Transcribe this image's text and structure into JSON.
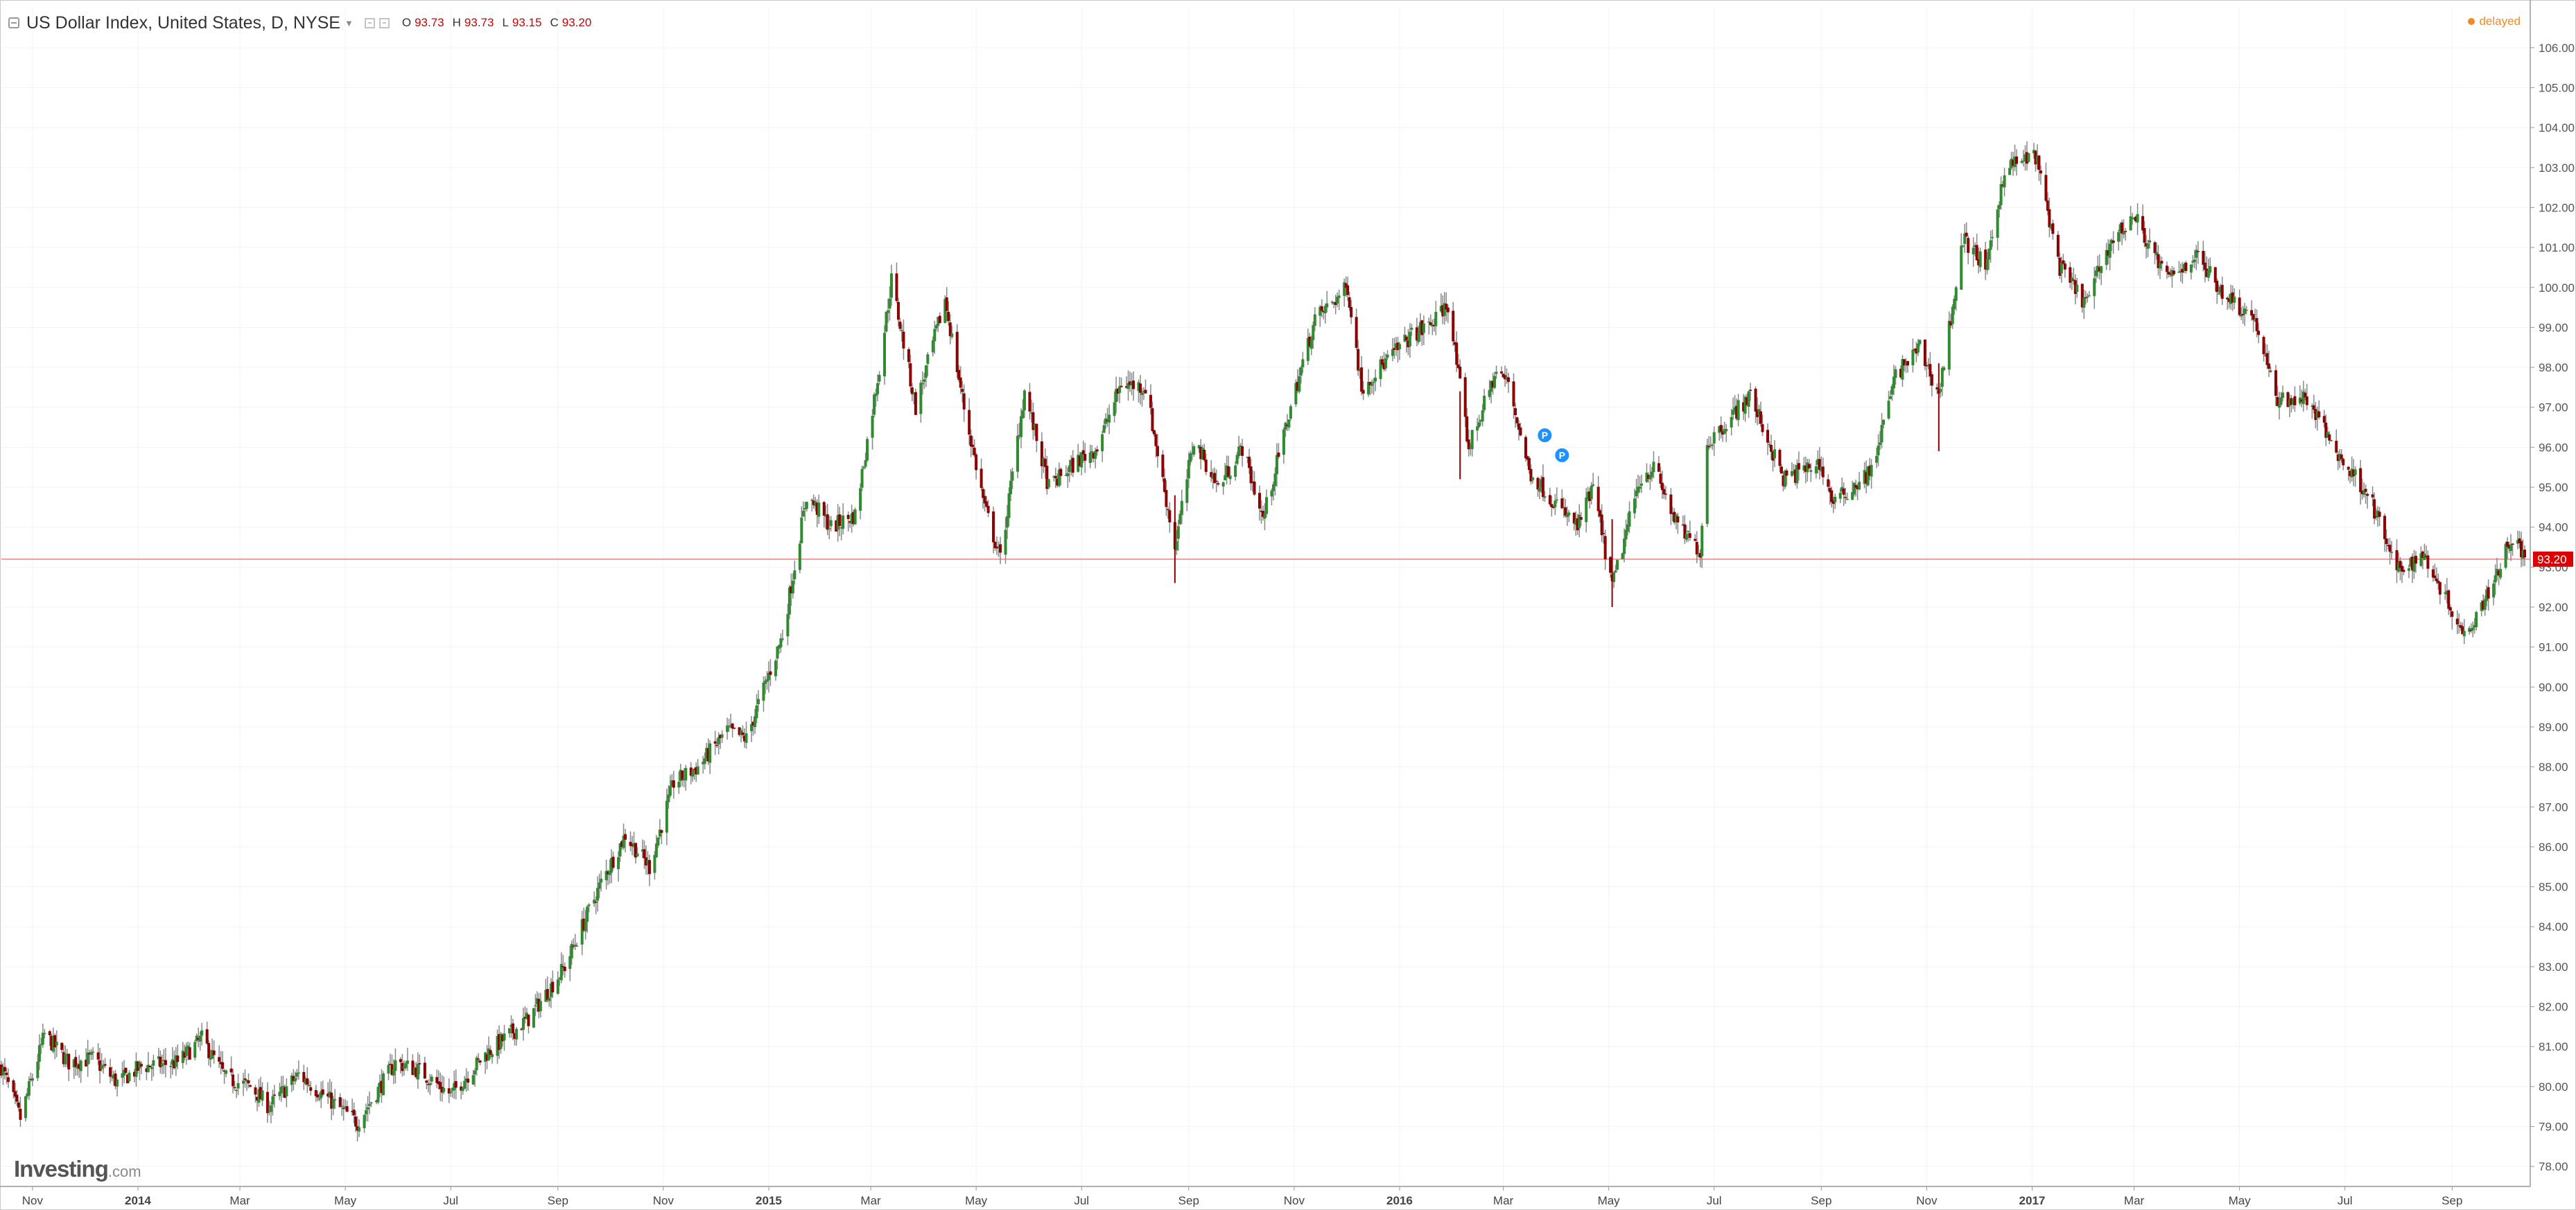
{
  "header": {
    "title": "US Dollar Index, United States, D, NYSE",
    "ohlc": [
      {
        "key": "O",
        "value": "93.73"
      },
      {
        "key": "H",
        "value": "93.73"
      },
      {
        "key": "L",
        "value": "93.15"
      },
      {
        "key": "C",
        "value": "93.20"
      }
    ],
    "status": "delayed"
  },
  "logo": {
    "brand": "Investing",
    "domain": ".com"
  },
  "colors": {
    "up": "#2e8b2e",
    "down": "#8b0000",
    "wick": "#888888",
    "price_line": "#f08080",
    "price_badge": "#dd0000",
    "grid": "#f3f3f3",
    "delayed": "#f08a24"
  },
  "chart_data": {
    "type": "candlestick",
    "title": "US Dollar Index, United States, D, NYSE",
    "last_price": "93.20",
    "y_axis": {
      "position": "right",
      "range": [
        77.5,
        106.5
      ],
      "ticks": [
        "78.00",
        "79.00",
        "80.00",
        "81.00",
        "82.00",
        "83.00",
        "84.00",
        "85.00",
        "86.00",
        "87.00",
        "88.00",
        "89.00",
        "90.00",
        "91.00",
        "92.00",
        "93.00",
        "94.00",
        "95.00",
        "96.00",
        "97.00",
        "98.00",
        "99.00",
        "100.00",
        "101.00",
        "102.00",
        "103.00",
        "104.00",
        "105.00",
        "106.00"
      ]
    },
    "x_axis": {
      "range": [
        "2013-10-14",
        "2017-10-13"
      ],
      "ticks": [
        {
          "label": "Nov",
          "date": "2013-11-01",
          "bold": false
        },
        {
          "label": "2014",
          "date": "2014-01-01",
          "bold": true
        },
        {
          "label": "Mar",
          "date": "2014-03-01",
          "bold": false
        },
        {
          "label": "May",
          "date": "2014-05-01",
          "bold": false
        },
        {
          "label": "Jul",
          "date": "2014-07-01",
          "bold": false
        },
        {
          "label": "Sep",
          "date": "2014-09-01",
          "bold": false
        },
        {
          "label": "Nov",
          "date": "2014-11-01",
          "bold": false
        },
        {
          "label": "2015",
          "date": "2015-01-01",
          "bold": true
        },
        {
          "label": "Mar",
          "date": "2015-03-01",
          "bold": false
        },
        {
          "label": "May",
          "date": "2015-05-01",
          "bold": false
        },
        {
          "label": "Jul",
          "date": "2015-07-01",
          "bold": false
        },
        {
          "label": "Sep",
          "date": "2015-09-01",
          "bold": false
        },
        {
          "label": "Nov",
          "date": "2015-11-01",
          "bold": false
        },
        {
          "label": "2016",
          "date": "2016-01-01",
          "bold": true
        },
        {
          "label": "Mar",
          "date": "2016-03-01",
          "bold": false
        },
        {
          "label": "May",
          "date": "2016-05-01",
          "bold": false
        },
        {
          "label": "Jul",
          "date": "2016-07-01",
          "bold": false
        },
        {
          "label": "Sep",
          "date": "2016-09-01",
          "bold": false
        },
        {
          "label": "Nov",
          "date": "2016-11-01",
          "bold": false
        },
        {
          "label": "2017",
          "date": "2017-01-01",
          "bold": true
        },
        {
          "label": "Mar",
          "date": "2017-03-01",
          "bold": false
        },
        {
          "label": "May",
          "date": "2017-05-01",
          "bold": false
        },
        {
          "label": "Jul",
          "date": "2017-07-01",
          "bold": false
        },
        {
          "label": "Sep",
          "date": "2017-09-01",
          "bold": false
        }
      ]
    },
    "grid": true,
    "close_path": [
      [
        "2013-10-14",
        80.5
      ],
      [
        "2013-10-25",
        79.2
      ],
      [
        "2013-11-08",
        81.3
      ],
      [
        "2013-11-22",
        80.6
      ],
      [
        "2013-12-06",
        80.7
      ],
      [
        "2013-12-20",
        80.1
      ],
      [
        "2014-01-03",
        80.5
      ],
      [
        "2014-01-24",
        80.6
      ],
      [
        "2014-02-07",
        81.2
      ],
      [
        "2014-02-21",
        80.2
      ],
      [
        "2014-03-07",
        80.0
      ],
      [
        "2014-03-18",
        79.5
      ],
      [
        "2014-04-04",
        80.3
      ],
      [
        "2014-04-18",
        79.8
      ],
      [
        "2014-05-08",
        79.1
      ],
      [
        "2014-05-30",
        80.6
      ],
      [
        "2014-06-13",
        80.4
      ],
      [
        "2014-07-01",
        79.8
      ],
      [
        "2014-07-21",
        80.8
      ],
      [
        "2014-08-15",
        81.7
      ],
      [
        "2014-09-05",
        83.0
      ],
      [
        "2014-09-26",
        85.1
      ],
      [
        "2014-10-10",
        86.3
      ],
      [
        "2014-10-24",
        85.5
      ],
      [
        "2014-11-07",
        87.6
      ],
      [
        "2014-11-21",
        88.0
      ],
      [
        "2014-12-08",
        88.9
      ],
      [
        "2014-12-19",
        88.7
      ],
      [
        "2015-01-09",
        91.3
      ],
      [
        "2015-01-23",
        94.8
      ],
      [
        "2015-02-06",
        94.0
      ],
      [
        "2015-02-20",
        94.3
      ],
      [
        "2015-03-06",
        98.0
      ],
      [
        "2015-03-13",
        100.2
      ],
      [
        "2015-03-27",
        97.0
      ],
      [
        "2015-04-13",
        99.7
      ],
      [
        "2015-04-24",
        97.0
      ],
      [
        "2015-05-06",
        94.5
      ],
      [
        "2015-05-15",
        93.2
      ],
      [
        "2015-05-29",
        97.4
      ],
      [
        "2015-06-12",
        95.0
      ],
      [
        "2015-06-30",
        95.7
      ],
      [
        "2015-07-10",
        96.0
      ],
      [
        "2015-07-24",
        97.6
      ],
      [
        "2015-08-07",
        97.5
      ],
      [
        "2015-08-24",
        93.5
      ],
      [
        "2015-09-04",
        96.2
      ],
      [
        "2015-09-18",
        95.0
      ],
      [
        "2015-10-02",
        96.0
      ],
      [
        "2015-10-14",
        94.2
      ],
      [
        "2015-10-30",
        97.0
      ],
      [
        "2015-11-13",
        99.2
      ],
      [
        "2015-12-02",
        100.0
      ],
      [
        "2015-12-10",
        97.5
      ],
      [
        "2015-12-23",
        98.1
      ],
      [
        "2016-01-08",
        98.8
      ],
      [
        "2016-01-20",
        99.1
      ],
      [
        "2016-01-29",
        99.6
      ],
      [
        "2016-02-10",
        96.0
      ],
      [
        "2016-02-26",
        97.9
      ],
      [
        "2016-03-04",
        97.6
      ],
      [
        "2016-03-16",
        95.4
      ],
      [
        "2016-03-31",
        94.6
      ],
      [
        "2016-04-13",
        94.0
      ],
      [
        "2016-04-22",
        95.0
      ],
      [
        "2016-05-03",
        92.5
      ],
      [
        "2016-05-19",
        95.2
      ],
      [
        "2016-05-27",
        95.5
      ],
      [
        "2016-06-10",
        94.0
      ],
      [
        "2016-06-23",
        93.4
      ],
      [
        "2016-06-27",
        96.1
      ],
      [
        "2016-07-22",
        97.3
      ],
      [
        "2016-08-10",
        95.2
      ],
      [
        "2016-08-31",
        95.6
      ],
      [
        "2016-09-08",
        94.6
      ],
      [
        "2016-09-30",
        95.4
      ],
      [
        "2016-10-14",
        97.8
      ],
      [
        "2016-10-28",
        98.5
      ],
      [
        "2016-11-08",
        97.3
      ],
      [
        "2016-11-22",
        101.2
      ],
      [
        "2016-12-06",
        100.5
      ],
      [
        "2016-12-16",
        103.0
      ],
      [
        "2017-01-03",
        103.3
      ],
      [
        "2017-01-17",
        100.5
      ],
      [
        "2017-02-01",
        99.6
      ],
      [
        "2017-02-15",
        101.1
      ],
      [
        "2017-03-01",
        101.8
      ],
      [
        "2017-03-20",
        100.2
      ],
      [
        "2017-04-06",
        100.8
      ],
      [
        "2017-04-21",
        99.9
      ],
      [
        "2017-05-10",
        99.2
      ],
      [
        "2017-05-22",
        97.2
      ],
      [
        "2017-06-09",
        97.2
      ],
      [
        "2017-06-30",
        95.6
      ],
      [
        "2017-07-14",
        94.9
      ],
      [
        "2017-07-31",
        92.9
      ],
      [
        "2017-08-16",
        93.3
      ],
      [
        "2017-08-29",
        92.2
      ],
      [
        "2017-09-08",
        91.3
      ],
      [
        "2017-09-22",
        92.4
      ],
      [
        "2017-10-06",
        93.8
      ],
      [
        "2017-10-13",
        93.2
      ]
    ],
    "spike_lows": [
      [
        "2015-08-24",
        92.6
      ],
      [
        "2016-02-05",
        95.2
      ],
      [
        "2016-05-03",
        92.0
      ],
      [
        "2016-11-08",
        95.9
      ]
    ],
    "markers": [
      {
        "label": "P",
        "date": "2016-03-25",
        "value": 96.3
      },
      {
        "label": "P",
        "date": "2016-04-04",
        "value": 95.8
      }
    ]
  }
}
